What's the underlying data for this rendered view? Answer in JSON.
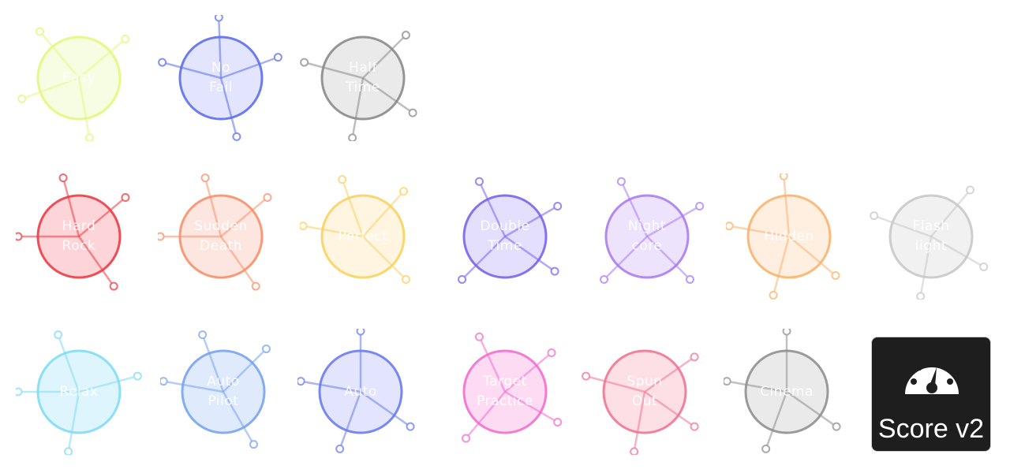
{
  "mods": [
    {
      "label": "Easy",
      "color": "#e4f87a",
      "fill": "#f7fde0",
      "row": 0,
      "col": 0,
      "spokes": [
        -130,
        -40,
        160,
        80
      ]
    },
    {
      "label": "No\nFail",
      "color": "#5b6ef0",
      "fill": "#dfe3fd",
      "row": 0,
      "col": 1,
      "spokes": [
        -92,
        -20,
        195,
        75
      ]
    },
    {
      "label": "Half\nTime",
      "color": "#8a8a8a",
      "fill": "#e8e8e8",
      "row": 0,
      "col": 2,
      "spokes": [
        -45,
        195,
        35,
        100
      ]
    },
    {
      "label": "Hard\nRock",
      "color": "#ee3a44",
      "fill": "#fdd0d3",
      "row": 1,
      "col": 0,
      "spokes": [
        -105,
        -40,
        180,
        55
      ]
    },
    {
      "label": "Sudden\nDeath",
      "color": "#f8906a",
      "fill": "#fde4dc",
      "row": 1,
      "col": 1,
      "spokes": [
        -105,
        -40,
        180,
        55
      ]
    },
    {
      "label": "Perfect",
      "color": "#fbd15e",
      "fill": "#fff5dd",
      "row": 1,
      "col": 2,
      "spokes": [
        -110,
        -48,
        190,
        45
      ]
    },
    {
      "label": "Double\nTime",
      "color": "#7c62ef",
      "fill": "#e2dcfd",
      "row": 1,
      "col": 3,
      "spokes": [
        -115,
        -30,
        135,
        35
      ]
    },
    {
      "label": "Night\ncore",
      "color": "#a97cf6",
      "fill": "#ece0fd",
      "row": 1,
      "col": 4,
      "spokes": [
        -115,
        -30,
        135,
        45
      ]
    },
    {
      "label": "Hidden",
      "color": "#fbb36c",
      "fill": "#feeedd",
      "row": 1,
      "col": 5,
      "spokes": [
        -95,
        190,
        105,
        40
      ]
    },
    {
      "label": "Flash\nlight",
      "color": "#c8c8c8",
      "fill": "#f0f0f0",
      "row": 1,
      "col": 6,
      "spokes": [
        -50,
        200,
        100,
        30
      ]
    },
    {
      "label": "Relax",
      "color": "#7fdcf6",
      "fill": "#dcf5fd",
      "row": 2,
      "col": 0,
      "spokes": [
        -110,
        -15,
        180,
        100
      ]
    },
    {
      "label": "Auto\nPilot",
      "color": "#78a3f2",
      "fill": "#dde8fd",
      "row": 2,
      "col": 1,
      "spokes": [
        -110,
        -45,
        190,
        60
      ]
    },
    {
      "label": "Auto",
      "color": "#6a7cf0",
      "fill": "#dfe3fd",
      "row": 2,
      "col": 2,
      "spokes": [
        -90,
        190,
        110,
        35
      ]
    },
    {
      "label": "Target\nPractice",
      "color": "#f46ccc",
      "fill": "#fdd9f2",
      "row": 2,
      "col": 3,
      "spokes": [
        -115,
        -40,
        130,
        30
      ]
    },
    {
      "label": "Spun\nOut",
      "color": "#f27494",
      "fill": "#fddce4",
      "row": 2,
      "col": 4,
      "spokes": [
        -35,
        195,
        100,
        35
      ]
    },
    {
      "label": "Cinema",
      "color": "#909090",
      "fill": "#e8e8e8",
      "row": 2,
      "col": 5,
      "spokes": [
        -90,
        190,
        110,
        35
      ]
    }
  ],
  "score_v2": {
    "label": "Score v2",
    "icon": "speedometer-icon"
  }
}
